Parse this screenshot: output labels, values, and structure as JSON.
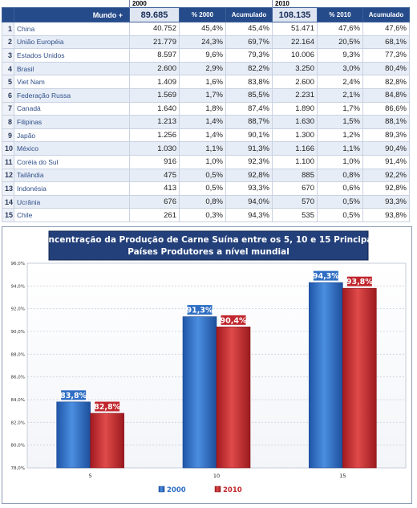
{
  "table": {
    "year_headers": [
      "2000",
      "2010"
    ],
    "header": {
      "world_label": "Mundo +",
      "world_2000": "89.685",
      "pct_2000_label": "% 2000",
      "acc_label_1": "Acumulado",
      "world_2010": "108.135",
      "pct_2010_label": "% 2010",
      "acc_label_2": "Acumulado"
    },
    "rows": [
      {
        "rank": "1",
        "country": "China",
        "v2000": "40.752",
        "p2000": "45,4%",
        "a2000": "45,4%",
        "v2010": "51.471",
        "p2010": "47,6%",
        "a2010": "47,6%"
      },
      {
        "rank": "2",
        "country": "União Européia",
        "v2000": "21.779",
        "p2000": "24,3%",
        "a2000": "69,7%",
        "v2010": "22.164",
        "p2010": "20,5%",
        "a2010": "68,1%"
      },
      {
        "rank": "3",
        "country": "Estados Unidos",
        "v2000": "8.597",
        "p2000": "9,6%",
        "a2000": "79,3%",
        "v2010": "10.006",
        "p2010": "9,3%",
        "a2010": "77,3%"
      },
      {
        "rank": "4",
        "country": "Brasil",
        "v2000": "2.600",
        "p2000": "2,9%",
        "a2000": "82,2%",
        "v2010": "3.250",
        "p2010": "3,0%",
        "a2010": "80,4%"
      },
      {
        "rank": "5",
        "country": "Viet Nam",
        "v2000": "1.409",
        "p2000": "1,6%",
        "a2000": "83,8%",
        "v2010": "2.600",
        "p2010": "2,4%",
        "a2010": "82,8%"
      },
      {
        "rank": "6",
        "country": "Federação Russa",
        "v2000": "1.569",
        "p2000": "1,7%",
        "a2000": "85,5%",
        "v2010": "2.231",
        "p2010": "2,1%",
        "a2010": "84,8%"
      },
      {
        "rank": "7",
        "country": "Canadá",
        "v2000": "1.640",
        "p2000": "1,8%",
        "a2000": "87,4%",
        "v2010": "1.890",
        "p2010": "1,7%",
        "a2010": "86,6%"
      },
      {
        "rank": "8",
        "country": "Filipinas",
        "v2000": "1.213",
        "p2000": "1,4%",
        "a2000": "88,7%",
        "v2010": "1.630",
        "p2010": "1,5%",
        "a2010": "88,1%"
      },
      {
        "rank": "9",
        "country": "Japão",
        "v2000": "1.256",
        "p2000": "1,4%",
        "a2000": "90,1%",
        "v2010": "1.300",
        "p2010": "1,2%",
        "a2010": "89,3%"
      },
      {
        "rank": "10",
        "country": "México",
        "v2000": "1.030",
        "p2000": "1,1%",
        "a2000": "91,3%",
        "v2010": "1.166",
        "p2010": "1,1%",
        "a2010": "90,4%"
      },
      {
        "rank": "11",
        "country": "Coréia do Sul",
        "v2000": "916",
        "p2000": "1,0%",
        "a2000": "92,3%",
        "v2010": "1.100",
        "p2010": "1,0%",
        "a2010": "91,4%"
      },
      {
        "rank": "12",
        "country": "Tailândia",
        "v2000": "475",
        "p2000": "0,5%",
        "a2000": "92,8%",
        "v2010": "885",
        "p2010": "0,8%",
        "a2010": "92,2%"
      },
      {
        "rank": "13",
        "country": "Indonésia",
        "v2000": "413",
        "p2000": "0,5%",
        "a2000": "93,3%",
        "v2010": "670",
        "p2010": "0,6%",
        "a2010": "92,8%"
      },
      {
        "rank": "14",
        "country": "Ucrânia",
        "v2000": "676",
        "p2000": "0,8%",
        "a2000": "94,0%",
        "v2010": "570",
        "p2010": "0,5%",
        "a2010": "93,3%"
      },
      {
        "rank": "15",
        "country": "Chile",
        "v2000": "261",
        "p2000": "0,3%",
        "a2000": "94,3%",
        "v2010": "535",
        "p2010": "0,5%",
        "a2010": "93,8%"
      }
    ]
  },
  "chart_data": {
    "type": "bar",
    "title_lines": [
      "Concentração da Produção de Carne Suína entre os 5, 10 e 15 Principais",
      "Países Produtores a nível mundial"
    ],
    "categories": [
      "5",
      "10",
      "15"
    ],
    "series": [
      {
        "name": "2000",
        "values": [
          83.8,
          91.3,
          94.3
        ],
        "labels": [
          "83,8%",
          "91,3%",
          "94,3%"
        ],
        "color": "#2f6ec4"
      },
      {
        "name": "2010",
        "values": [
          82.8,
          90.4,
          93.8
        ],
        "labels": [
          "82,8%",
          "90,4%",
          "93,8%"
        ],
        "color": "#c0262c"
      }
    ],
    "ylim": [
      78,
      96
    ],
    "yticks": [
      78,
      80,
      82,
      84,
      86,
      88,
      90,
      92,
      94,
      96
    ],
    "ytick_labels": [
      "78,0%",
      "80,0%",
      "82,0%",
      "84,0%",
      "86,0%",
      "88,0%",
      "90,0%",
      "92,0%",
      "94,0%",
      "96,0%"
    ],
    "grid": true,
    "legend": "bottom-center"
  },
  "colors": {
    "header_bg": "#264b8a",
    "title_box": "#23407a",
    "series_2000": "#2f6ec4",
    "series_2010": "#c0262c"
  }
}
